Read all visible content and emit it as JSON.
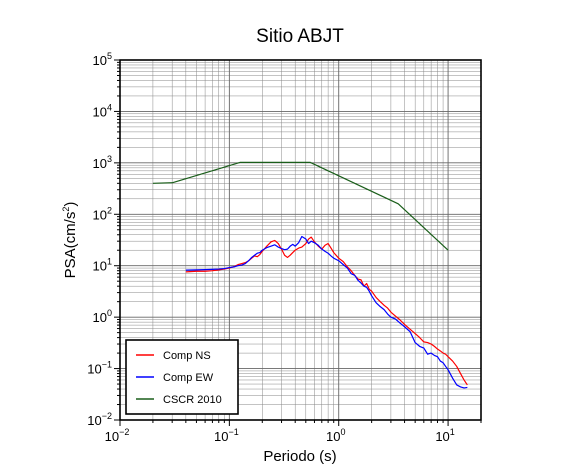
{
  "chart_data": {
    "type": "line",
    "title": "Sitio ABJT",
    "xlabel": "Periodo (s)",
    "ylabel": {
      "base": "PSA(cm/s",
      "sup": "2",
      "close": ")"
    },
    "x_scale": "log",
    "y_scale": "log",
    "xlim": [
      0.01,
      20
    ],
    "ylim": [
      0.01,
      100000
    ],
    "grid": true,
    "legend_position": "bottom-left",
    "x_ticks": [
      {
        "value": 0.01,
        "base": "10",
        "exp": "−2"
      },
      {
        "value": 0.1,
        "base": "10",
        "exp": "−1"
      },
      {
        "value": 1,
        "base": "10",
        "exp": "0"
      },
      {
        "value": 10,
        "base": "10",
        "exp": "1"
      }
    ],
    "y_ticks": [
      {
        "value": 0.01,
        "base": "10",
        "exp": "−2"
      },
      {
        "value": 0.1,
        "base": "10",
        "exp": "−1"
      },
      {
        "value": 1,
        "base": "10",
        "exp": "0"
      },
      {
        "value": 10,
        "base": "10",
        "exp": "1"
      },
      {
        "value": 100,
        "base": "10",
        "exp": "2"
      },
      {
        "value": 1000,
        "base": "10",
        "exp": "3"
      },
      {
        "value": 10000,
        "base": "10",
        "exp": "4"
      },
      {
        "value": 100000,
        "base": "10",
        "exp": "5"
      }
    ],
    "series": [
      {
        "name": "Comp NS",
        "color": "#ff0000",
        "points": [
          [
            0.04,
            7.6
          ],
          [
            0.05,
            7.8
          ],
          [
            0.06,
            7.8
          ],
          [
            0.07,
            8.0
          ],
          [
            0.08,
            8.3
          ],
          [
            0.09,
            8.6
          ],
          [
            0.1,
            9.0
          ],
          [
            0.11,
            9.6
          ],
          [
            0.12,
            10.5
          ],
          [
            0.13,
            11.0
          ],
          [
            0.14,
            11.5
          ],
          [
            0.15,
            12.5
          ],
          [
            0.16,
            14.0
          ],
          [
            0.17,
            15.5
          ],
          [
            0.18,
            15.0
          ],
          [
            0.19,
            16.5
          ],
          [
            0.2,
            19.0
          ],
          [
            0.22,
            24.0
          ],
          [
            0.24,
            29.0
          ],
          [
            0.26,
            31.0
          ],
          [
            0.28,
            27.0
          ],
          [
            0.3,
            21.0
          ],
          [
            0.32,
            16.0
          ],
          [
            0.34,
            14.5
          ],
          [
            0.36,
            16.0
          ],
          [
            0.38,
            18.0
          ],
          [
            0.4,
            20.0
          ],
          [
            0.43,
            22.0
          ],
          [
            0.46,
            23.0
          ],
          [
            0.5,
            27.0
          ],
          [
            0.53,
            33.0
          ],
          [
            0.56,
            36.0
          ],
          [
            0.6,
            29.0
          ],
          [
            0.65,
            24.0
          ],
          [
            0.7,
            21.0
          ],
          [
            0.75,
            25.0
          ],
          [
            0.8,
            27.0
          ],
          [
            0.85,
            22.0
          ],
          [
            0.9,
            18.0
          ],
          [
            1.0,
            14.0
          ],
          [
            1.1,
            12.0
          ],
          [
            1.2,
            9.5
          ],
          [
            1.3,
            8.0
          ],
          [
            1.4,
            6.5
          ],
          [
            1.5,
            5.5
          ],
          [
            1.6,
            5.3
          ],
          [
            1.7,
            4.0
          ],
          [
            1.8,
            4.5
          ],
          [
            1.9,
            3.5
          ],
          [
            2.0,
            3.2
          ],
          [
            2.2,
            2.4
          ],
          [
            2.4,
            2.0
          ],
          [
            2.6,
            1.7
          ],
          [
            2.8,
            1.5
          ],
          [
            3.0,
            1.25
          ],
          [
            3.3,
            1.05
          ],
          [
            3.6,
            0.9
          ],
          [
            4.0,
            0.72
          ],
          [
            4.5,
            0.58
          ],
          [
            5.0,
            0.48
          ],
          [
            5.5,
            0.4
          ],
          [
            6.0,
            0.33
          ],
          [
            6.5,
            0.32
          ],
          [
            7.0,
            0.3
          ],
          [
            7.5,
            0.27
          ],
          [
            8.0,
            0.24
          ],
          [
            8.5,
            0.22
          ],
          [
            9.0,
            0.2
          ],
          [
            9.5,
            0.19
          ],
          [
            10.0,
            0.17
          ],
          [
            11.0,
            0.14
          ],
          [
            12.0,
            0.11
          ],
          [
            13.0,
            0.08
          ],
          [
            14.0,
            0.06
          ],
          [
            15.0,
            0.048
          ]
        ]
      },
      {
        "name": "Comp EW",
        "color": "#0000ff",
        "points": [
          [
            0.04,
            8.2
          ],
          [
            0.05,
            8.3
          ],
          [
            0.06,
            8.4
          ],
          [
            0.07,
            8.5
          ],
          [
            0.08,
            8.6
          ],
          [
            0.09,
            8.8
          ],
          [
            0.1,
            9.2
          ],
          [
            0.11,
            9.5
          ],
          [
            0.12,
            10.0
          ],
          [
            0.13,
            10.3
          ],
          [
            0.14,
            11.0
          ],
          [
            0.15,
            12.5
          ],
          [
            0.16,
            14.5
          ],
          [
            0.17,
            16.0
          ],
          [
            0.18,
            17.5
          ],
          [
            0.19,
            18.0
          ],
          [
            0.2,
            20.0
          ],
          [
            0.22,
            22.5
          ],
          [
            0.24,
            24.0
          ],
          [
            0.26,
            25.5
          ],
          [
            0.28,
            23.0
          ],
          [
            0.3,
            21.5
          ],
          [
            0.32,
            20.5
          ],
          [
            0.34,
            21.0
          ],
          [
            0.36,
            24.0
          ],
          [
            0.38,
            26.0
          ],
          [
            0.4,
            24.0
          ],
          [
            0.43,
            28.0
          ],
          [
            0.46,
            37.0
          ],
          [
            0.5,
            33.0
          ],
          [
            0.53,
            27.0
          ],
          [
            0.56,
            30.0
          ],
          [
            0.6,
            28.0
          ],
          [
            0.65,
            25.0
          ],
          [
            0.7,
            21.0
          ],
          [
            0.75,
            19.0
          ],
          [
            0.8,
            17.5
          ],
          [
            0.85,
            15.5
          ],
          [
            0.9,
            14.0
          ],
          [
            1.0,
            12.5
          ],
          [
            1.1,
            10.5
          ],
          [
            1.2,
            9.0
          ],
          [
            1.3,
            7.0
          ],
          [
            1.4,
            6.5
          ],
          [
            1.5,
            5.2
          ],
          [
            1.6,
            4.6
          ],
          [
            1.7,
            4.0
          ],
          [
            1.8,
            3.8
          ],
          [
            1.9,
            3.2
          ],
          [
            2.0,
            2.6
          ],
          [
            2.2,
            1.9
          ],
          [
            2.4,
            1.6
          ],
          [
            2.6,
            1.4
          ],
          [
            2.8,
            1.15
          ],
          [
            3.0,
            1.0
          ],
          [
            3.3,
            0.92
          ],
          [
            3.6,
            0.78
          ],
          [
            4.0,
            0.65
          ],
          [
            4.5,
            0.52
          ],
          [
            5.0,
            0.32
          ],
          [
            5.5,
            0.27
          ],
          [
            6.0,
            0.25
          ],
          [
            6.5,
            0.19
          ],
          [
            7.0,
            0.2
          ],
          [
            7.5,
            0.18
          ],
          [
            8.0,
            0.17
          ],
          [
            8.5,
            0.14
          ],
          [
            9.0,
            0.13
          ],
          [
            9.5,
            0.11
          ],
          [
            10.0,
            0.095
          ],
          [
            11.0,
            0.065
          ],
          [
            12.0,
            0.048
          ],
          [
            13.0,
            0.044
          ],
          [
            14.0,
            0.042
          ],
          [
            15.0,
            0.043
          ]
        ]
      },
      {
        "name": "CSCR 2010",
        "color": "#1a5e1a",
        "points": [
          [
            0.02,
            400
          ],
          [
            0.03,
            410
          ],
          [
            0.125,
            1020
          ],
          [
            0.55,
            1020
          ],
          [
            3.5,
            160
          ],
          [
            10.0,
            20
          ]
        ]
      }
    ]
  }
}
